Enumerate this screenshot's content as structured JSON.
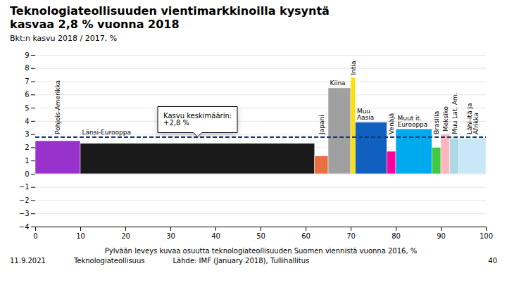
{
  "chart_data": {
    "type": "bar",
    "title": "Teknologiateollisuuden vientimarkkinoilla kysyntä\nkasvaa 2,8 % vuonna 2018",
    "subtitle": "Bkt:n kasvu 2018 / 2017, %",
    "xlabel": "Pylvään leveys kuvaa osuutta teknologiateollisuuden Suomen viennistä vuonna 2016, %",
    "categories": [
      "Pohjois-Amerikka",
      "Länsi-Eurooppa",
      "Japani",
      "Kiina",
      "Intia",
      "Muu\nAasia",
      "Venäjä",
      "Muut it.\nEurooppa",
      "Brasilia",
      "Meksiko",
      "Muu Lat. Am.",
      "Lähi-itä ja\nAfrikka"
    ],
    "x": [
      0,
      10,
      62,
      65,
      70,
      71,
      78,
      80,
      88,
      90,
      92,
      94
    ],
    "widths": [
      10,
      52,
      3,
      5,
      1,
      7,
      2,
      8,
      2,
      2,
      2,
      6
    ],
    "values": [
      2.5,
      2.3,
      1.35,
      6.5,
      7.3,
      3.9,
      1.7,
      3.4,
      2.0,
      3.0,
      2.7,
      2.7
    ],
    "colors": [
      "#9932CC",
      "#1a1a1a",
      "#E87040",
      "#A0A0A0",
      "#FFE000",
      "#1060C0",
      "#FF00A0",
      "#00AAEE",
      "#40C840",
      "#FFB6C1",
      "#ADD8E6",
      "#C8E8F8"
    ],
    "avg_line": {
      "value": 2.8,
      "color": "#1a3a7a",
      "line_style": "dashed"
    },
    "annotations": [
      "Kasvu keskimäärin:\n+2,8 %"
    ],
    "xlim": [
      0,
      100
    ],
    "ylim": [
      -4,
      9
    ],
    "xticks": [
      0,
      10,
      20,
      30,
      40,
      50,
      60,
      70,
      80,
      90,
      100
    ],
    "yticks": [
      -4,
      -3,
      -2,
      -1,
      0,
      1,
      2,
      3,
      4,
      5,
      6,
      7,
      8,
      9
    ],
    "grid": "y",
    "footer": [
      "11.9.2021",
      "Teknologiateollisuus",
      "Lähde: IMF (January 2018), Tullihallitus",
      "40"
    ]
  }
}
